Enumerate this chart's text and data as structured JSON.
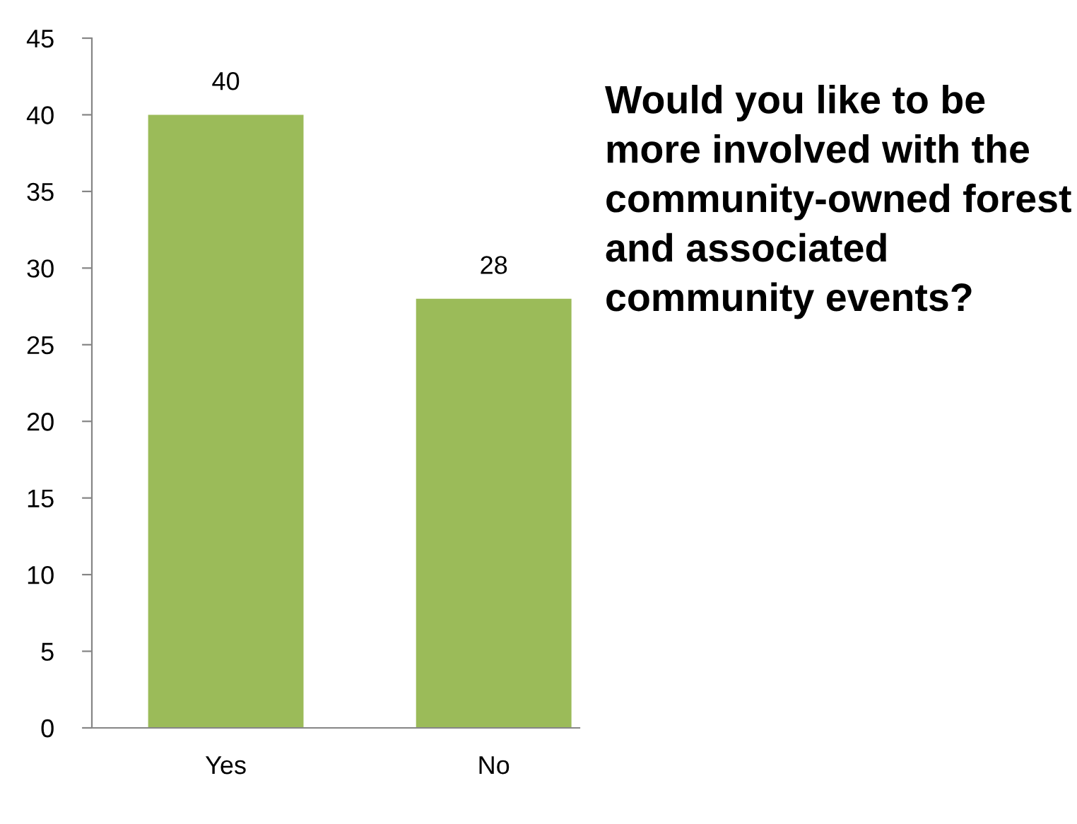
{
  "chart_data": {
    "type": "bar",
    "title": "Would you like to be more involved with the community-owned forest and associated community events?",
    "categories": [
      "Yes",
      "No"
    ],
    "values": [
      40,
      28
    ],
    "color": "#9bbb59",
    "ylim": [
      0,
      45
    ],
    "yticks": [
      0,
      5,
      10,
      15,
      20,
      25,
      30,
      35,
      40,
      45
    ],
    "grid": false,
    "data_labels": true
  }
}
